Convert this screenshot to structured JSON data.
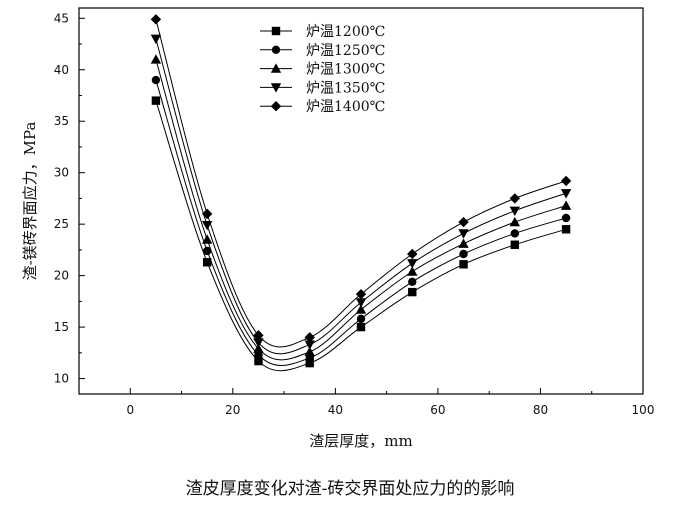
{
  "caption": "渣皮厚度变化对渣-砖交界面处应力的的影响",
  "chart_data": {
    "type": "line",
    "title": "",
    "xlabel": "渣层厚度，mm",
    "ylabel": "渣-镁砖界面应力，MPa",
    "xlim": [
      -10,
      100
    ],
    "ylim": [
      8.5,
      46
    ],
    "xticks": [
      0,
      20,
      40,
      60,
      80,
      100
    ],
    "yticks": [
      10,
      15,
      20,
      25,
      30,
      35,
      40,
      45
    ],
    "x": [
      5,
      15,
      25,
      35,
      45,
      55,
      65,
      75,
      85
    ],
    "grid": false,
    "legend_position": "top-center",
    "series": [
      {
        "name": "炉温1200℃",
        "marker": "square",
        "values": [
          37.0,
          21.3,
          11.7,
          11.5,
          15.0,
          18.4,
          21.1,
          23.0,
          24.5
        ]
      },
      {
        "name": "炉温1250℃",
        "marker": "circle",
        "values": [
          39.0,
          22.4,
          12.3,
          12.0,
          15.8,
          19.4,
          22.1,
          24.1,
          25.6
        ]
      },
      {
        "name": "炉温1300℃",
        "marker": "triangle-up",
        "values": [
          41.0,
          23.5,
          12.9,
          12.6,
          16.7,
          20.4,
          23.1,
          25.2,
          26.8
        ]
      },
      {
        "name": "炉温1350℃",
        "marker": "triangle-down",
        "values": [
          43.0,
          24.9,
          13.5,
          13.3,
          17.4,
          21.2,
          24.1,
          26.3,
          28.0
        ]
      },
      {
        "name": "炉温1400℃",
        "marker": "diamond",
        "values": [
          44.9,
          26.0,
          14.2,
          14.0,
          18.2,
          22.1,
          25.2,
          27.5,
          29.2
        ]
      }
    ]
  }
}
